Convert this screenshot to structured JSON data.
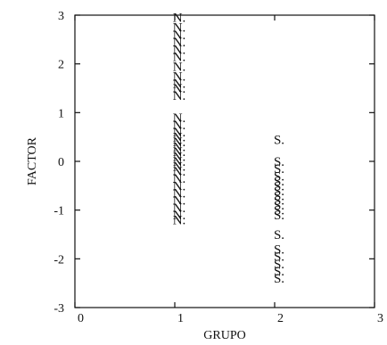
{
  "chart_data": {
    "type": "scatter",
    "xlabel": "GRUPO",
    "ylabel": "FACTOR",
    "xlim": [
      0,
      3
    ],
    "ylim": [
      -3,
      3
    ],
    "xticks": [
      "0",
      "1",
      "2",
      "3"
    ],
    "yticks": [
      "3",
      "2",
      "1",
      "0",
      "-1",
      "-2",
      "-3"
    ],
    "grid": false,
    "legend": "none",
    "series": [
      {
        "marker": "N",
        "x": 1,
        "values": [
          2.95,
          2.75,
          2.6,
          2.45,
          2.3,
          2.15,
          1.95,
          1.75,
          1.6,
          1.5,
          1.35,
          0.9,
          0.75,
          0.6,
          0.5,
          0.4,
          0.3,
          0.2,
          0.1,
          0.0,
          -0.1,
          -0.2,
          -0.35,
          -0.5,
          -0.65,
          -0.8,
          -0.95,
          -1.1,
          -1.2
        ]
      },
      {
        "marker": "S",
        "x": 2,
        "values": [
          0.45,
          0.0,
          -0.15,
          -0.3,
          -0.4,
          -0.5,
          -0.6,
          -0.7,
          -0.8,
          -0.9,
          -1.0,
          -1.1,
          -1.5,
          -1.8,
          -1.95,
          -2.1,
          -2.25,
          -2.4
        ]
      }
    ]
  }
}
